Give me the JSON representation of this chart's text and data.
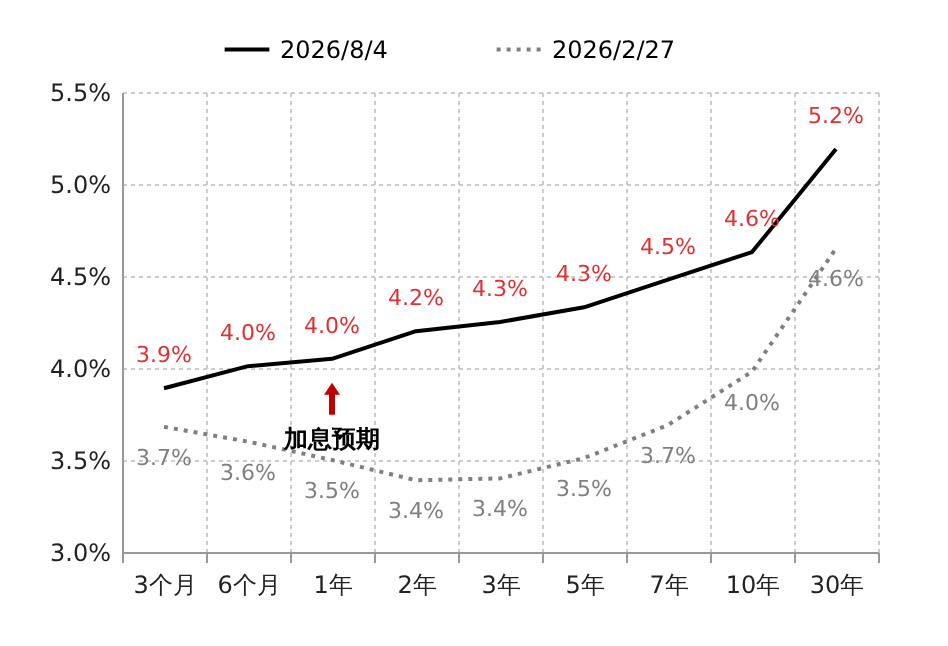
{
  "chart_data": {
    "type": "line",
    "categories": [
      "3个月",
      "6个月",
      "1年",
      "2年",
      "3年",
      "5年",
      "7年",
      "10年",
      "30年"
    ],
    "series": [
      {
        "name": "2026/8/4",
        "color": "#000000",
        "line_style": "solid",
        "values": [
          3.89,
          4.01,
          4.05,
          4.2,
          4.25,
          4.33,
          4.48,
          4.63,
          5.19
        ],
        "value_labels": [
          "3.9%",
          "4.0%",
          "4.0%",
          "4.2%",
          "4.3%",
          "4.3%",
          "4.5%",
          "4.6%",
          "5.2%"
        ]
      },
      {
        "name": "2026/2/27",
        "color": "#808080",
        "line_style": "dotted",
        "values": [
          3.68,
          3.6,
          3.5,
          3.39,
          3.4,
          3.51,
          3.69,
          3.98,
          4.65
        ],
        "value_labels": [
          "3.7%",
          "3.6%",
          "3.5%",
          "3.4%",
          "3.4%",
          "3.5%",
          "3.7%",
          "4.0%",
          "4.6%"
        ]
      }
    ],
    "ylim": [
      3.0,
      5.5
    ],
    "yticks": [
      {
        "value": 3.0,
        "label": "3.0%"
      },
      {
        "value": 3.5,
        "label": "3.5%"
      },
      {
        "value": 4.0,
        "label": "4.0%"
      },
      {
        "value": 4.5,
        "label": "4.5%"
      },
      {
        "value": 5.0,
        "label": "5.0%"
      },
      {
        "value": 5.5,
        "label": "5.5%"
      }
    ],
    "grid": true,
    "legend": "top",
    "marker": "none",
    "annotations": [
      {
        "text": "加息预期",
        "x": "1年",
        "y": 4.05
      }
    ]
  }
}
